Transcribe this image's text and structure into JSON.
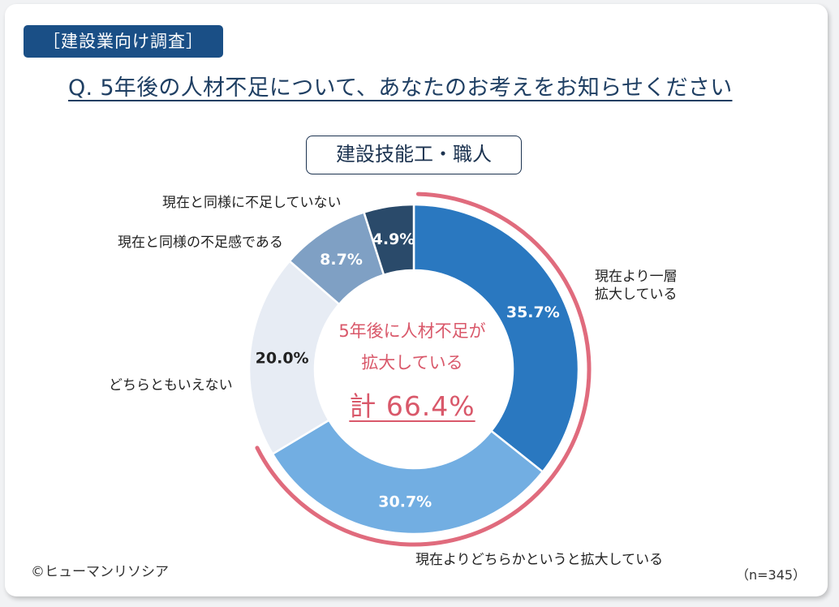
{
  "header": {
    "tag": "［建設業向け調査］",
    "question": "Q. 5年後の人材不足について、あなたのお考えをお知らせください"
  },
  "segment": "建設技能工・職人",
  "chart_data": {
    "type": "pie",
    "variant": "donut",
    "title": "建設技能工・職人",
    "categories": [
      "現在より一層拡大している",
      "現在よりどちらかというと拡大している",
      "どちらともいえない",
      "現在と同様の不足感である",
      "現在と同様に不足していない"
    ],
    "values": [
      35.7,
      30.7,
      20.0,
      8.7,
      4.9
    ],
    "value_labels": [
      "35.7%",
      "30.7%",
      "20.0%",
      "8.7%",
      "4.9%"
    ],
    "category_labels": [
      [
        "現在より一層",
        "拡大している"
      ],
      [
        "現在よりどちらかというと拡大している"
      ],
      [
        "どちらともいえない"
      ],
      [
        "現在と同様の不足感である"
      ],
      [
        "現在と同様に不足していない"
      ]
    ],
    "colors": [
      "#2a78c0",
      "#72aee2",
      "#e7ecf4",
      "#7fa0c4",
      "#2a4a6a"
    ],
    "label_colors": [
      "#ffffff",
      "#ffffff",
      "#222222",
      "#ffffff",
      "#ffffff"
    ],
    "start": "top, clockwise",
    "highlight": {
      "color": "#e06b7d",
      "line1": "5年後に人材不足が",
      "line2": "拡大している",
      "total": "計 66.4%",
      "covers_values": [
        35.7,
        30.7
      ]
    }
  },
  "footer": {
    "copyright": "©ヒューマンリソシア",
    "sample_size": "（n=345）"
  }
}
